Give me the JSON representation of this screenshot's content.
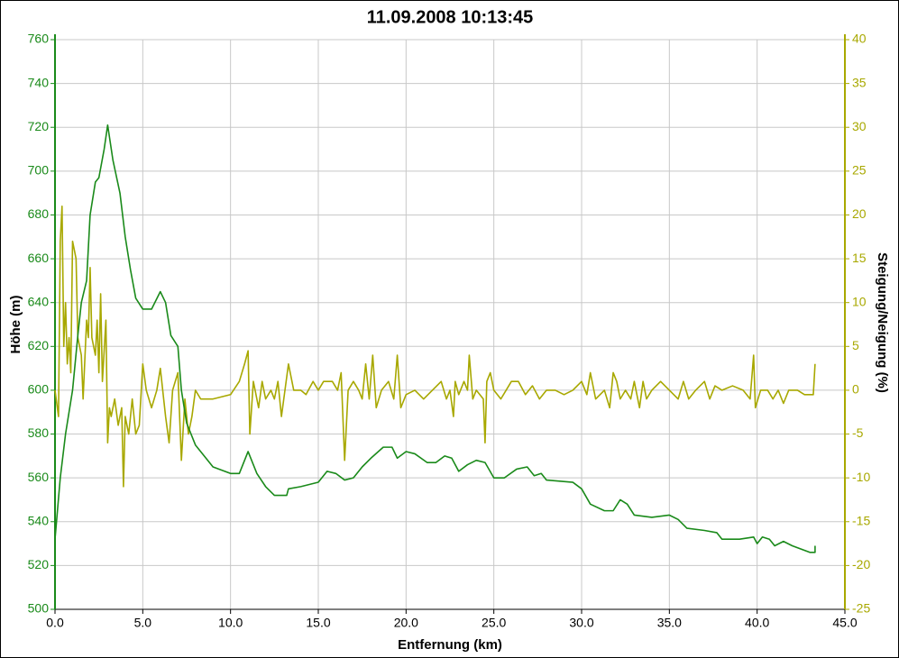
{
  "chart_data": {
    "type": "line",
    "title": "11.09.2008 10:13:45",
    "xlabel": "Entfernung (km)",
    "ylabel": "Höhe (m)",
    "y2label": "Steigung/Neigung (%)",
    "xlim": [
      0,
      45
    ],
    "xticks": [
      {
        "value": 0,
        "label": "0.0"
      },
      {
        "value": 5,
        "label": "5.0"
      },
      {
        "value": 10,
        "label": "10.0"
      },
      {
        "value": 15,
        "label": "15.0"
      },
      {
        "value": 20,
        "label": "20.0"
      },
      {
        "value": 25,
        "label": "25.0"
      },
      {
        "value": 30,
        "label": "30.0"
      },
      {
        "value": 35,
        "label": "35.0"
      },
      {
        "value": 40,
        "label": "40.0"
      },
      {
        "value": 45,
        "label": "45.0"
      }
    ],
    "ylim": [
      500,
      760
    ],
    "yticks": [
      500,
      520,
      540,
      560,
      580,
      600,
      620,
      640,
      660,
      680,
      700,
      720,
      740,
      760
    ],
    "y2lim": [
      -25,
      40
    ],
    "y2ticks": [
      -25,
      -20,
      -15,
      -10,
      -5,
      0,
      5,
      10,
      15,
      20,
      25,
      30,
      35,
      40
    ],
    "grid": true,
    "ycolor": "#1a8a1a",
    "y2color": "#a8a800",
    "series": [
      {
        "color": "#1a8a1a",
        "x": [
          0.0,
          0.3,
          0.6,
          1.0,
          1.3,
          1.5,
          1.8,
          2.0,
          2.3,
          2.5,
          2.8,
          3.0,
          3.3,
          3.7,
          4.0,
          4.3,
          4.6,
          5.0,
          5.5,
          6.0,
          6.3,
          6.6,
          7.0,
          7.2,
          7.5,
          8.0,
          9.0,
          10.0,
          10.5,
          11.0,
          11.5,
          12.0,
          12.5,
          13.2,
          13.3,
          14.0,
          15.0,
          15.5,
          16.0,
          16.5,
          17.0,
          17.5,
          18.0,
          18.7,
          19.2,
          19.5,
          20.0,
          20.5,
          21.2,
          21.7,
          22.2,
          22.6,
          23.0,
          23.5,
          24.0,
          24.5,
          25.0,
          25.6,
          26.3,
          26.9,
          27.3,
          27.7,
          28.0,
          29.5,
          30.0,
          30.5,
          31.3,
          31.8,
          32.2,
          32.6,
          33.0,
          34.0,
          35.0,
          35.5,
          36.0,
          37.0,
          37.7,
          38.0,
          39.0,
          39.8,
          40.0,
          40.3,
          40.7,
          41.0,
          41.5,
          42.0,
          43.0,
          43.3,
          43.3
        ],
        "values": [
          532,
          560,
          580,
          600,
          625,
          640,
          650,
          680,
          695,
          697,
          710,
          721,
          705,
          690,
          670,
          655,
          642,
          637,
          637,
          645,
          640,
          625,
          620,
          600,
          585,
          575,
          565,
          562,
          562,
          572,
          562,
          556,
          552,
          552,
          555,
          556,
          558,
          563,
          562,
          559,
          560,
          565,
          569,
          574,
          574,
          569,
          572,
          571,
          567,
          567,
          570,
          569,
          563,
          566,
          568,
          567,
          560,
          560,
          564,
          565,
          561,
          562,
          559,
          558,
          555,
          548,
          545,
          545,
          550,
          548,
          543,
          542,
          543,
          541,
          537,
          536,
          535,
          532,
          532,
          533,
          530,
          533,
          532,
          529,
          531,
          529,
          526,
          526,
          529
        ]
      },
      {
        "color": "#a8a800",
        "axis": "y2",
        "x": [
          0.0,
          0.2,
          0.3,
          0.4,
          0.5,
          0.6,
          0.7,
          0.8,
          0.9,
          1.0,
          1.2,
          1.3,
          1.5,
          1.6,
          1.8,
          1.9,
          2.0,
          2.1,
          2.3,
          2.4,
          2.5,
          2.6,
          2.7,
          2.9,
          3.0,
          3.1,
          3.2,
          3.4,
          3.6,
          3.8,
          3.9,
          4.0,
          4.2,
          4.4,
          4.6,
          4.8,
          5.0,
          5.2,
          5.5,
          5.8,
          6.0,
          6.3,
          6.5,
          6.7,
          7.0,
          7.2,
          7.4,
          7.6,
          7.8,
          8.0,
          8.3,
          9.0,
          10.0,
          10.5,
          10.8,
          11.0,
          11.1,
          11.3,
          11.6,
          11.8,
          12.0,
          12.3,
          12.5,
          12.7,
          12.9,
          13.1,
          13.3,
          13.6,
          14.0,
          14.3,
          14.7,
          15.0,
          15.3,
          15.8,
          16.1,
          16.3,
          16.5,
          16.7,
          17.0,
          17.3,
          17.5,
          17.7,
          17.9,
          18.1,
          18.3,
          18.6,
          19.0,
          19.3,
          19.5,
          19.7,
          20.0,
          20.5,
          21.0,
          21.5,
          22.0,
          22.3,
          22.5,
          22.7,
          22.8,
          23.0,
          23.3,
          23.5,
          23.6,
          23.8,
          24.0,
          24.4,
          24.5,
          24.6,
          24.8,
          25.0,
          25.4,
          25.7,
          26.0,
          26.4,
          26.8,
          27.2,
          27.6,
          28.0,
          28.5,
          29.0,
          29.5,
          30.0,
          30.3,
          30.5,
          30.8,
          31.3,
          31.6,
          31.8,
          32.0,
          32.2,
          32.5,
          32.8,
          33.0,
          33.3,
          33.5,
          33.7,
          34.0,
          34.5,
          35.0,
          35.5,
          35.8,
          36.1,
          36.5,
          37.0,
          37.3,
          37.6,
          38.0,
          38.6,
          39.2,
          39.6,
          39.8,
          39.9,
          40.2,
          40.6,
          40.9,
          41.2,
          41.5,
          41.8,
          42.3,
          42.7,
          43.2,
          43.3
        ],
        "values": [
          0,
          -3,
          17,
          21,
          5,
          10,
          3,
          6,
          2,
          17,
          15,
          6,
          4,
          -1,
          8,
          6,
          14,
          6,
          4,
          8,
          2,
          11,
          1,
          8,
          -6,
          -2,
          -3,
          -1,
          -4,
          -2,
          -11,
          -3,
          -5,
          -1,
          -5,
          -4,
          3,
          0,
          -2,
          0,
          2.5,
          -3,
          -6,
          0,
          2,
          -8,
          -1,
          -5,
          -3,
          0,
          -1,
          -1,
          -0.5,
          1,
          3,
          4.5,
          -5,
          1,
          -2,
          1,
          -1,
          0,
          -1,
          1,
          -3,
          0,
          3,
          0,
          0,
          -0.5,
          1,
          0,
          1,
          1,
          0,
          2,
          -8,
          0,
          1,
          0,
          -1,
          3,
          -1,
          4,
          -2,
          0,
          1,
          -1,
          4,
          -2,
          -0.5,
          0,
          -1,
          0,
          1,
          -1,
          0,
          -3,
          1,
          -0.5,
          1,
          0,
          4,
          -1,
          0,
          -1,
          -6,
          1,
          2,
          0,
          -1,
          0,
          1,
          1,
          -0.5,
          0.5,
          -1,
          0,
          0,
          -0.5,
          0,
          1,
          -0.5,
          2,
          -1,
          0,
          -2,
          2,
          1,
          -1,
          0,
          -1,
          1,
          -2,
          1,
          -1,
          0,
          1,
          0,
          -1,
          1,
          -1,
          0,
          1,
          -1,
          0.5,
          0,
          0.5,
          0,
          -1,
          4,
          -2,
          0,
          0,
          -1,
          0,
          -1.5,
          0,
          0,
          -0.5,
          -0.5,
          3
        ]
      }
    ]
  }
}
